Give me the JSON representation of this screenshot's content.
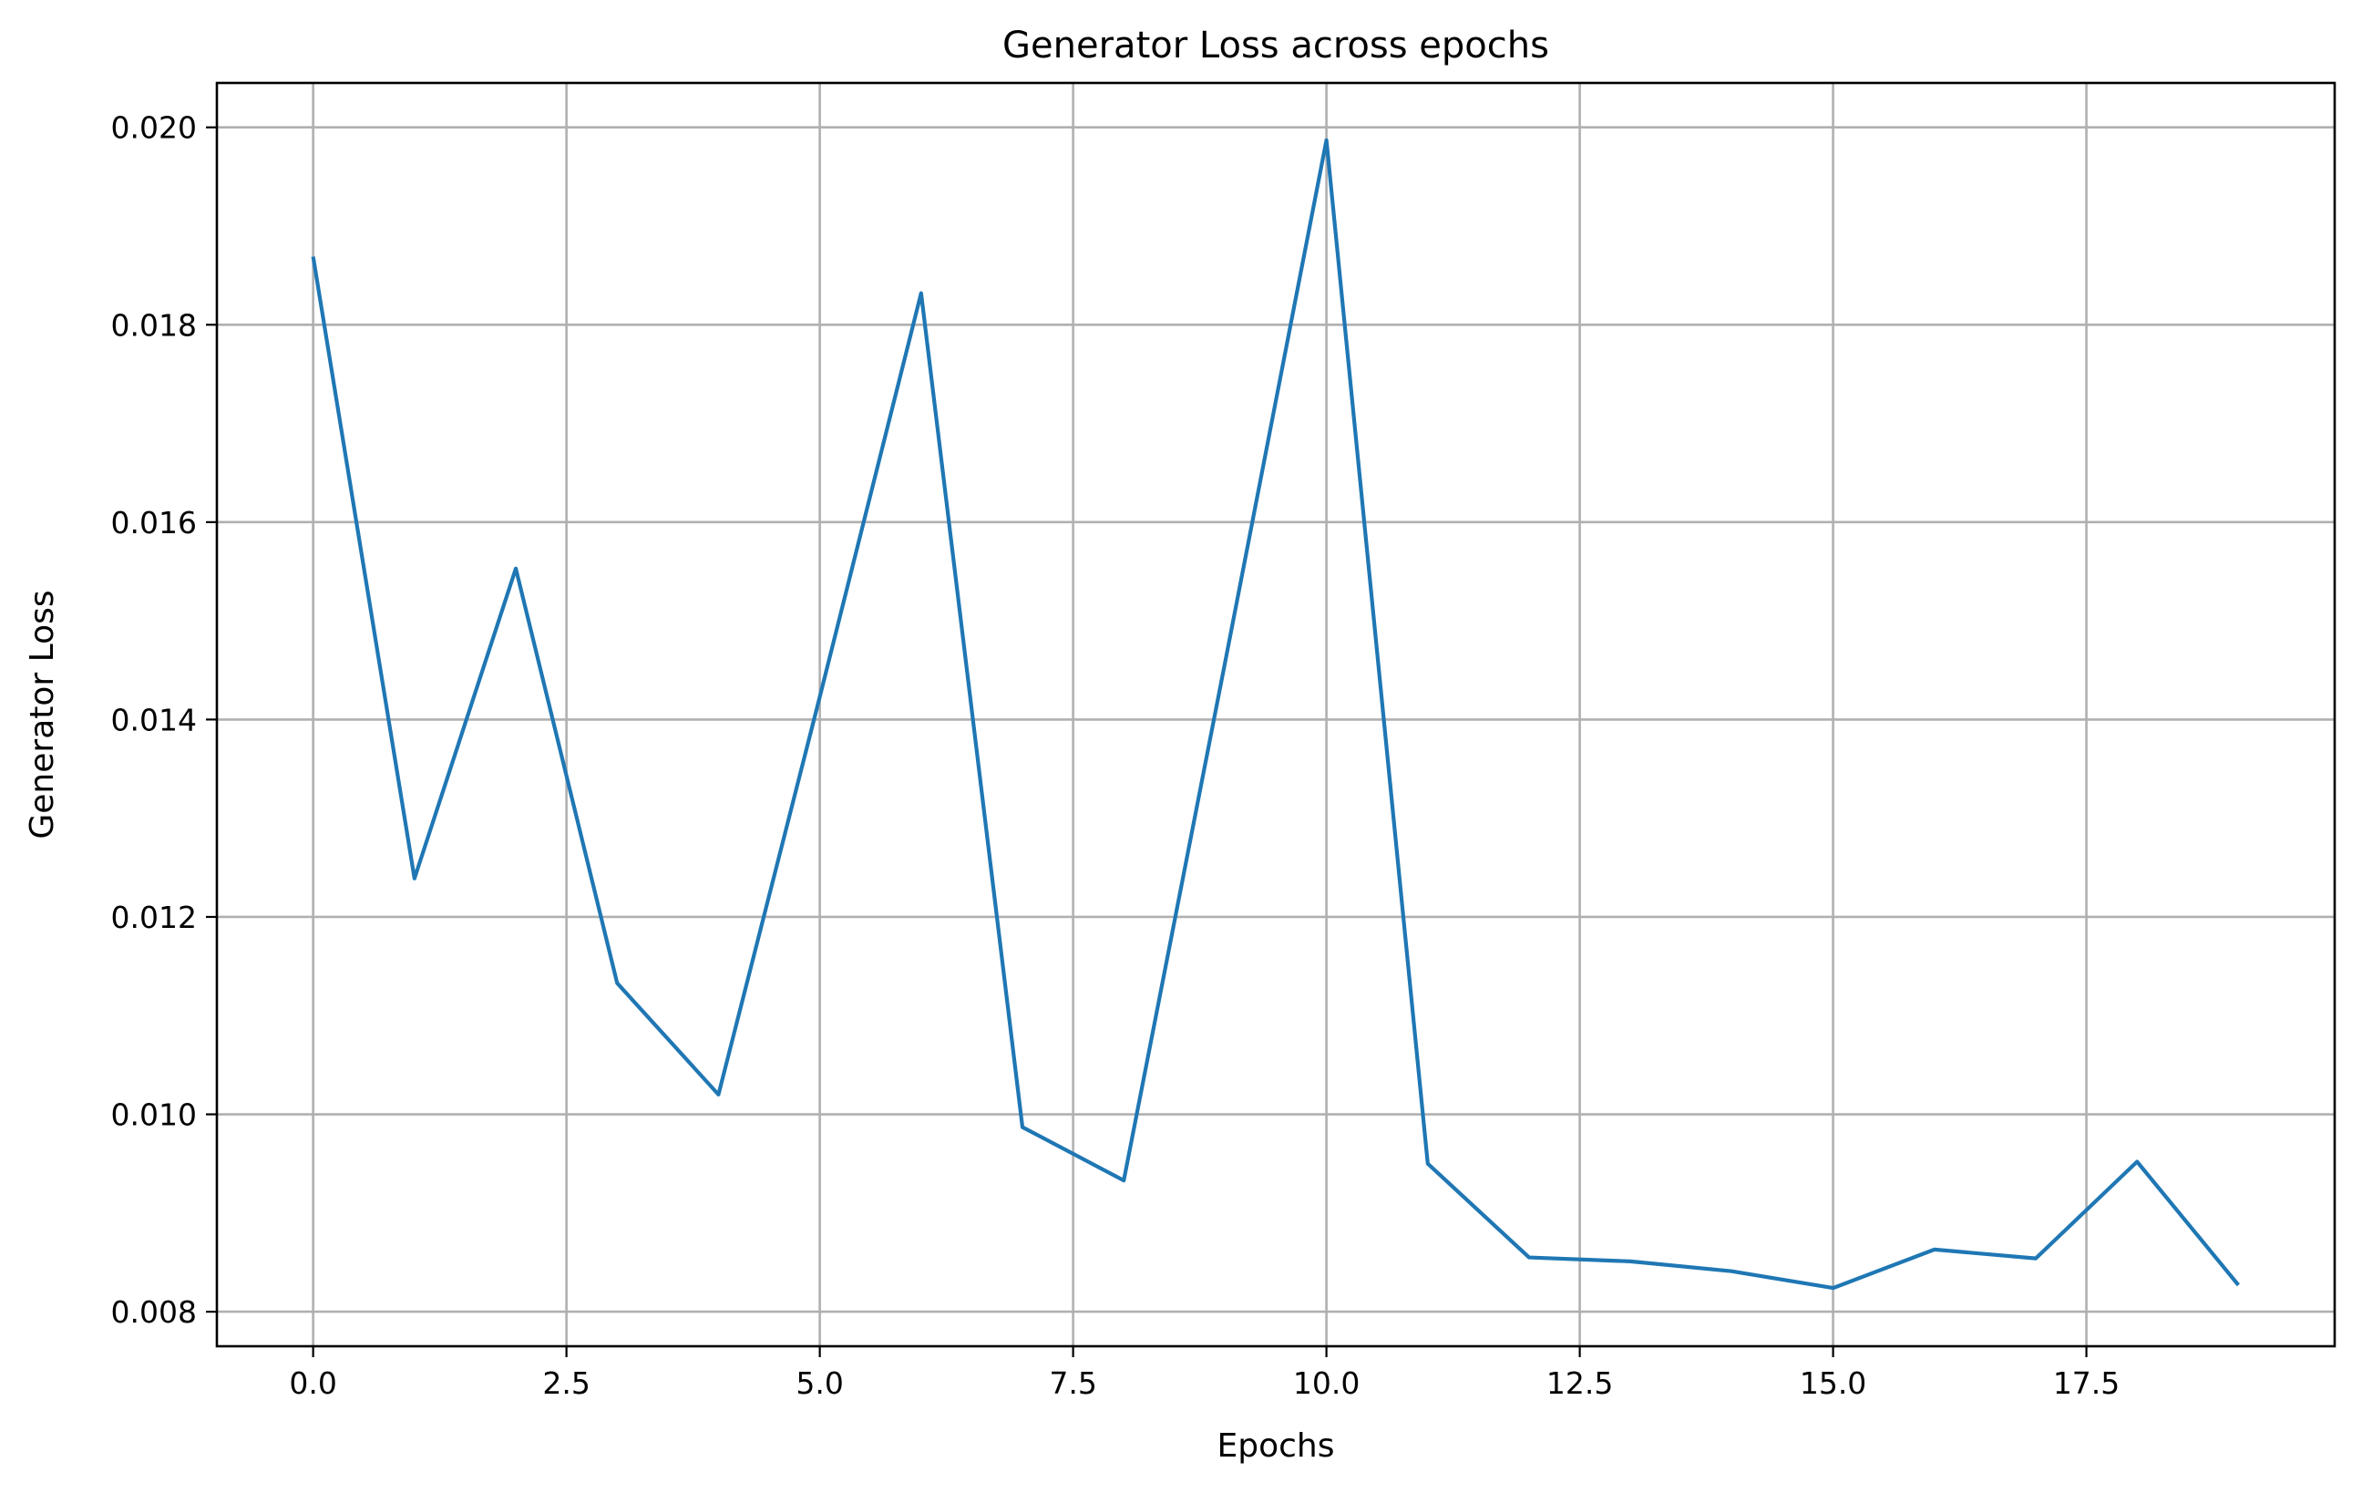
{
  "chart_data": {
    "type": "line",
    "title": "Generator Loss across epochs",
    "xlabel": "Epochs",
    "ylabel": "Generator Loss",
    "xlim": [
      -0.95,
      19.95
    ],
    "ylim": [
      0.00765,
      0.02045
    ],
    "grid": true,
    "x_ticks": [
      {
        "value": 0.0,
        "label": "0.0"
      },
      {
        "value": 2.5,
        "label": "2.5"
      },
      {
        "value": 5.0,
        "label": "5.0"
      },
      {
        "value": 7.5,
        "label": "7.5"
      },
      {
        "value": 10.0,
        "label": "10.0"
      },
      {
        "value": 12.5,
        "label": "12.5"
      },
      {
        "value": 15.0,
        "label": "15.0"
      },
      {
        "value": 17.5,
        "label": "17.5"
      }
    ],
    "y_ticks": [
      {
        "value": 0.008,
        "label": "0.008"
      },
      {
        "value": 0.01,
        "label": "0.010"
      },
      {
        "value": 0.012,
        "label": "0.012"
      },
      {
        "value": 0.014,
        "label": "0.014"
      },
      {
        "value": 0.016,
        "label": "0.016"
      },
      {
        "value": 0.018,
        "label": "0.018"
      },
      {
        "value": 0.02,
        "label": "0.020"
      }
    ],
    "series": [
      {
        "name": "Generator Loss",
        "color": "#1f77b4",
        "x": [
          0,
          1,
          2,
          3,
          4,
          5,
          6,
          7,
          8,
          9,
          10,
          11,
          12,
          13,
          14,
          15,
          16,
          17,
          18,
          19
        ],
        "values": [
          0.01869,
          0.01239,
          0.01553,
          0.01133,
          0.0102,
          0.01423,
          0.01832,
          0.00987,
          0.00933,
          0.01458,
          0.01987,
          0.0095,
          0.00855,
          0.00851,
          0.00841,
          0.00824,
          0.00863,
          0.00854,
          0.00952,
          0.00827
        ]
      }
    ]
  }
}
